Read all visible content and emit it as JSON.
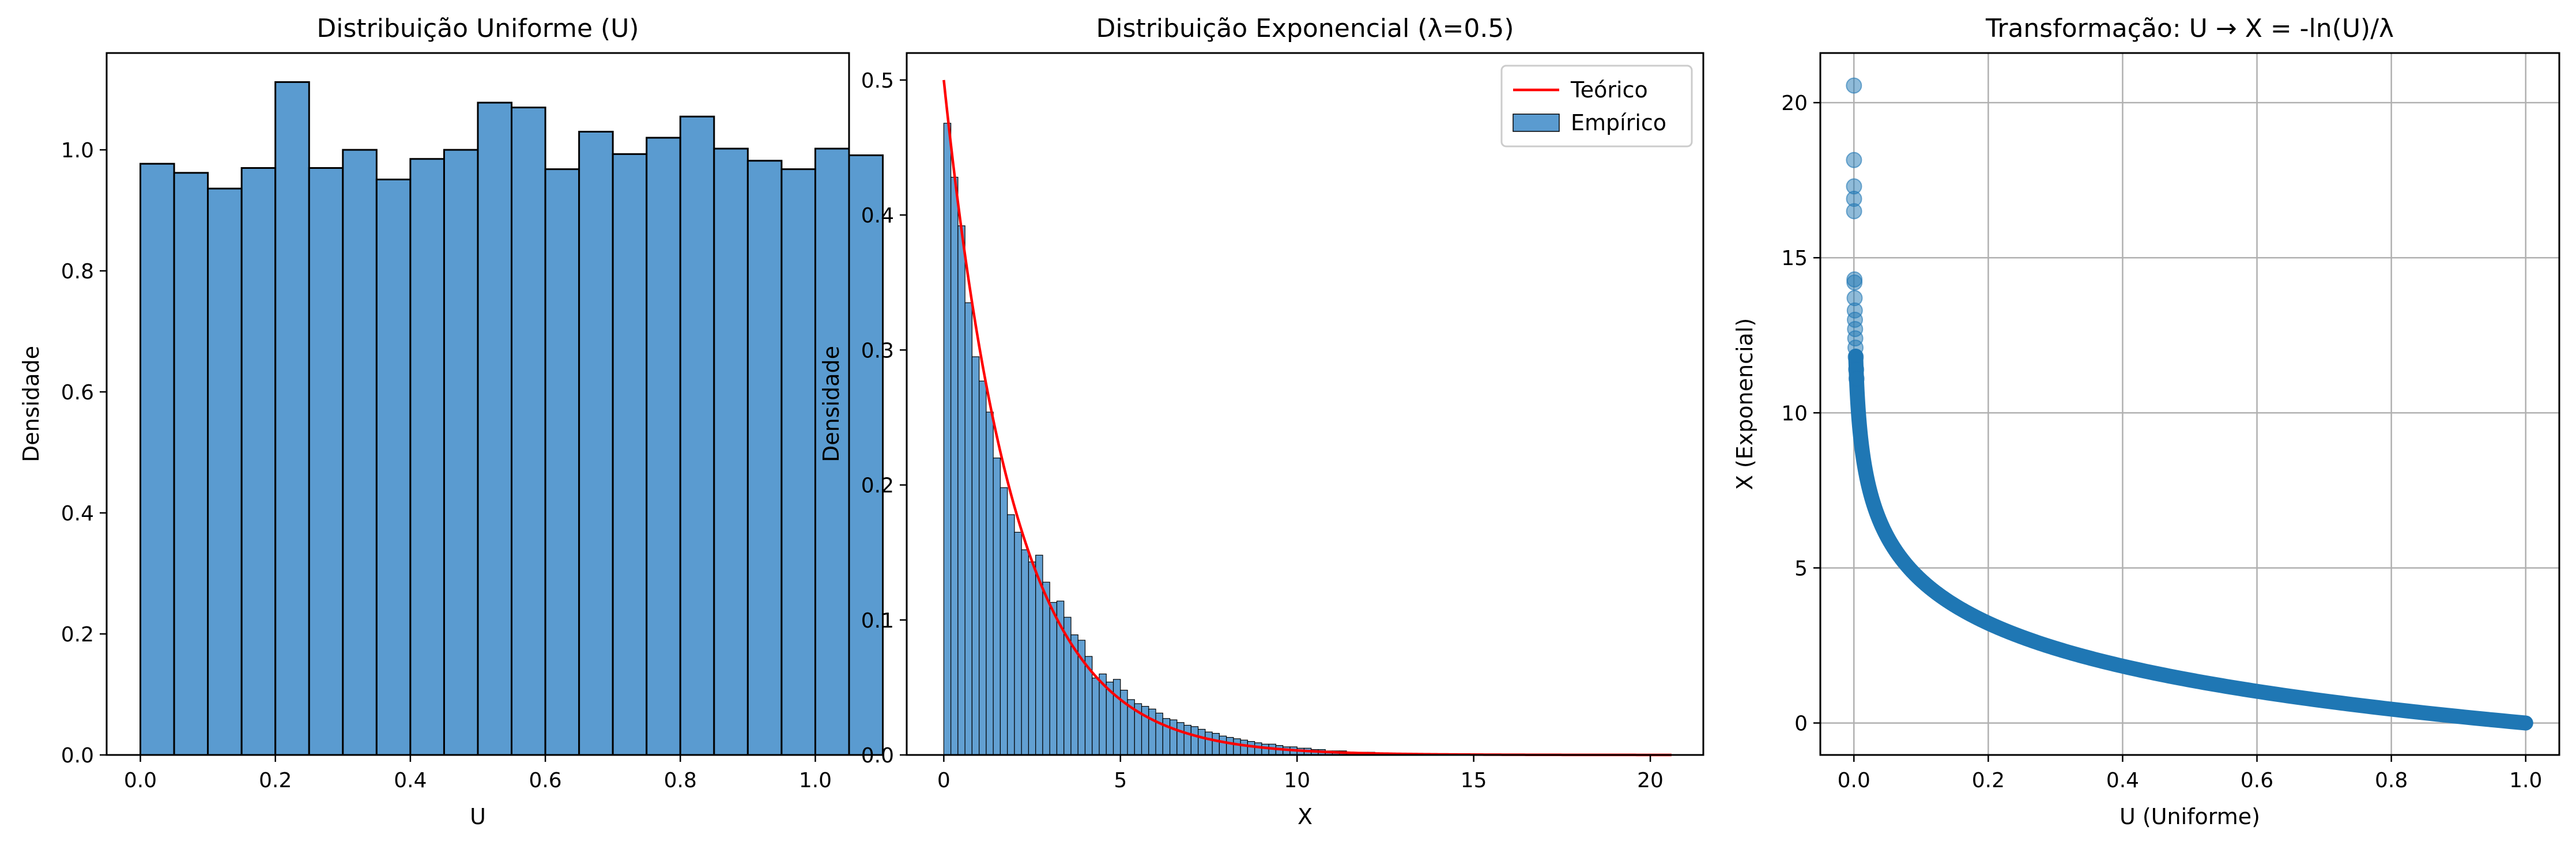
{
  "colors": {
    "bar": "#5a9bd0",
    "bar_edge": "#000000",
    "line": "#ff0000",
    "scatter": "#1f77b4",
    "grid": "#b0b0b0"
  },
  "chart_data": [
    {
      "type": "bar",
      "title": "Distribuição Uniforme (U)",
      "xlabel": "U",
      "ylabel": "Densidade",
      "xlim": [
        -0.05,
        1.05
      ],
      "ylim": [
        0,
        1.16
      ],
      "xticks": [
        0.0,
        0.2,
        0.4,
        0.6,
        0.8,
        1.0
      ],
      "xtick_labels": [
        "0.0",
        "0.2",
        "0.4",
        "0.6",
        "0.8",
        "1.0"
      ],
      "yticks": [
        0.0,
        0.2,
        0.4,
        0.6,
        0.8,
        1.0
      ],
      "ytick_labels": [
        "0.0",
        "0.2",
        "0.4",
        "0.6",
        "0.8",
        "1.0"
      ],
      "bin_width": 0.05,
      "bin_start": 0.0,
      "values": [
        0.977,
        0.962,
        0.936,
        0.97,
        1.112,
        0.97,
        1.0,
        0.951,
        0.985,
        1.0,
        1.078,
        1.07,
        0.968,
        1.03,
        0.993,
        1.02,
        1.055,
        1.002,
        0.982,
        0.968,
        1.002,
        0.991
      ],
      "grid": false
    },
    {
      "type": "bar",
      "title": "Distribuição Exponencial (λ=0.5)",
      "xlabel": "X",
      "ylabel": "Densidade",
      "xlim": [
        -1.05,
        21.5
      ],
      "ylim": [
        0,
        0.52
      ],
      "xticks": [
        0,
        5,
        10,
        15,
        20
      ],
      "xtick_labels": [
        "0",
        "5",
        "10",
        "15",
        "20"
      ],
      "yticks": [
        0.0,
        0.1,
        0.2,
        0.3,
        0.4,
        0.5
      ],
      "ytick_labels": [
        "0.0",
        "0.1",
        "0.2",
        "0.3",
        "0.4",
        "0.5"
      ],
      "bin_width": 0.2,
      "bin_start": 0.0,
      "values": [
        0.468,
        0.428,
        0.392,
        0.335,
        0.295,
        0.277,
        0.254,
        0.22,
        0.198,
        0.178,
        0.165,
        0.152,
        0.143,
        0.148,
        0.128,
        0.113,
        0.114,
        0.102,
        0.089,
        0.085,
        0.073,
        0.057,
        0.06,
        0.054,
        0.056,
        0.048,
        0.041,
        0.038,
        0.036,
        0.034,
        0.031,
        0.027,
        0.026,
        0.024,
        0.022,
        0.021,
        0.019,
        0.017,
        0.016,
        0.014,
        0.013,
        0.012,
        0.011,
        0.01,
        0.009,
        0.008,
        0.008,
        0.007,
        0.006,
        0.006,
        0.005,
        0.005,
        0.004,
        0.004,
        0.003,
        0.003,
        0.003,
        0.002,
        0.002,
        0.002,
        0.002,
        0.001,
        0.001,
        0.001,
        0.001,
        0.001,
        0.001,
        0.001,
        0.001,
        0.0005,
        0.0005,
        0.0005,
        0.0005,
        0.0005,
        0.0005
      ],
      "theory": {
        "name": "Teórico",
        "lambda": 0.5,
        "x_range": [
          0,
          20.6
        ]
      },
      "legend": {
        "position": "top-right",
        "entries": [
          "Teórico",
          "Empírico"
        ]
      },
      "grid": false
    },
    {
      "type": "scatter",
      "title": "Transformação: U → X = -ln(U)/λ",
      "xlabel": "U (Uniforme)",
      "ylabel": "X (Exponencial)",
      "xlim": [
        -0.05,
        1.05
      ],
      "ylim": [
        -1.03,
        21.6
      ],
      "xticks": [
        0.0,
        0.2,
        0.4,
        0.6,
        0.8,
        1.0
      ],
      "xtick_labels": [
        "0.0",
        "0.2",
        "0.4",
        "0.6",
        "0.8",
        "1.0"
      ],
      "yticks": [
        0,
        5,
        10,
        15,
        20
      ],
      "ytick_labels": [
        "0",
        "5",
        "10",
        "15",
        "20"
      ],
      "lambda": 0.5,
      "outlier_points_y": [
        20.55,
        18.15,
        17.3,
        16.9,
        16.5,
        14.3,
        14.2,
        13.7,
        13.3,
        13.0,
        12.7,
        12.4,
        12.1,
        11.8,
        11.4,
        11.1
      ],
      "grid": true
    }
  ]
}
